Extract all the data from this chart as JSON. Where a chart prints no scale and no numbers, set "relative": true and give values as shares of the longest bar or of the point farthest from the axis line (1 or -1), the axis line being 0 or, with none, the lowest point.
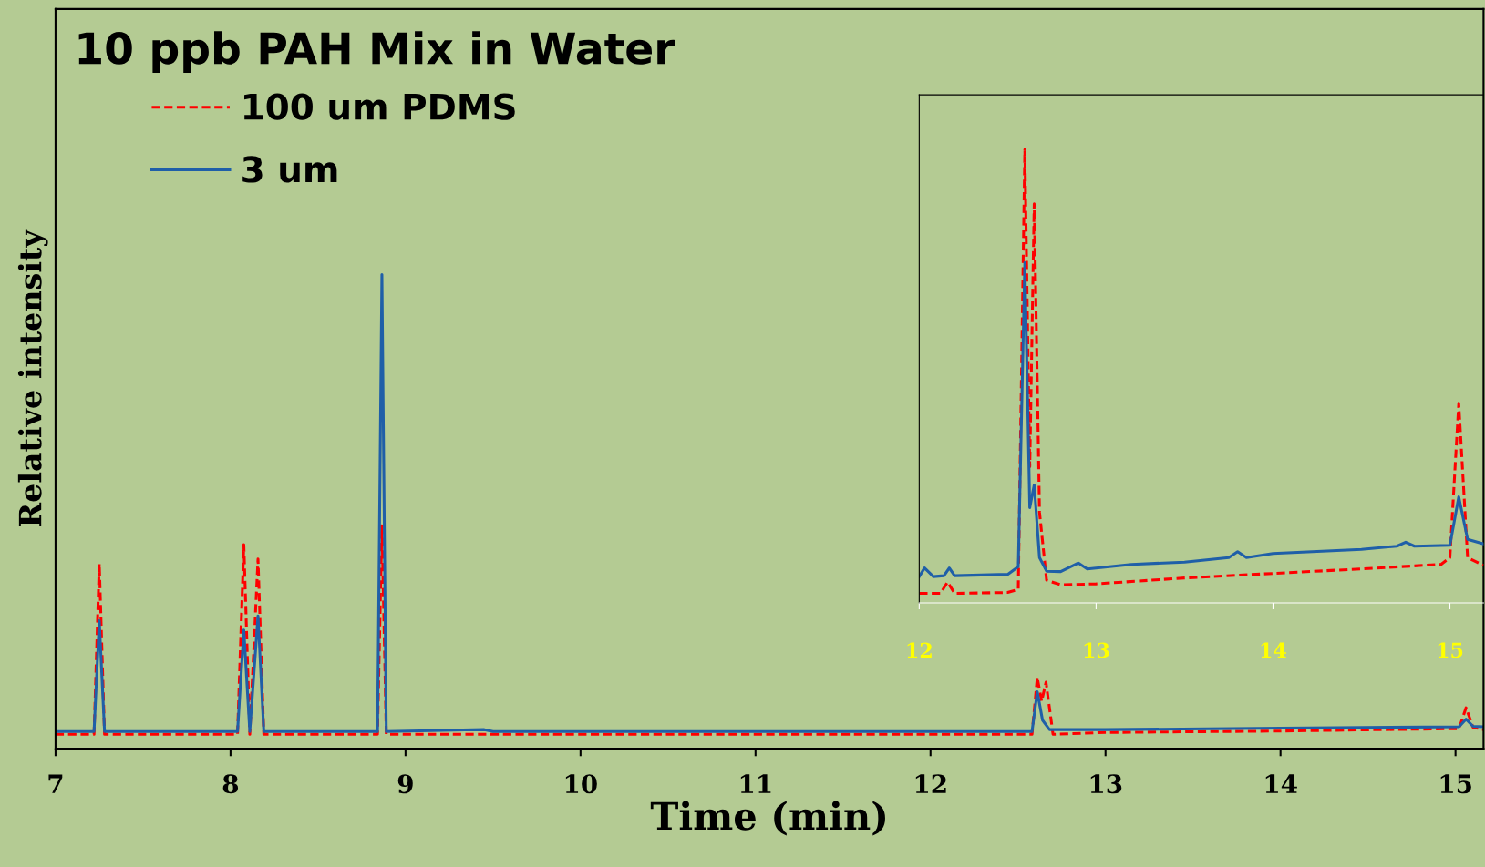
{
  "chart_data": [
    {
      "type": "line",
      "title": "10 ppb PAH Mix in Water",
      "xlabel": "Time (min)",
      "ylabel": "Relative intensity",
      "relative": true,
      "xlim": [
        7,
        15.16
      ],
      "xticks": [
        7,
        8,
        9,
        10,
        11,
        12,
        13,
        14,
        15
      ],
      "legend": "top left",
      "grid": false,
      "series": [
        {
          "name": "100 um PDMS",
          "color": "#ff0000",
          "line_style": "dashed",
          "x": [
            7,
            7.22,
            7.25,
            7.28,
            8.04,
            8.076,
            8.11,
            8.157,
            8.19,
            8.84,
            8.865,
            8.89,
            9.5,
            10,
            11,
            12,
            12.58,
            12.61,
            12.635,
            12.66,
            12.7,
            13,
            14,
            15.02,
            15.06,
            15.1,
            15.16
          ],
          "values": [
            0.03,
            0.03,
            0.39,
            0.03,
            0.03,
            0.43,
            0.03,
            0.4,
            0.03,
            0.03,
            0.47,
            0.03,
            0.03,
            0.03,
            0.03,
            0.03,
            0.03,
            0.15,
            0.1,
            0.14,
            0.03,
            0.034,
            0.037,
            0.042,
            0.086,
            0.045,
            0.04
          ]
        },
        {
          "name": "3 um",
          "color": "#1f5fa8",
          "line_style": "solid",
          "x": [
            7,
            7.22,
            7.25,
            7.28,
            8.04,
            8.076,
            8.11,
            8.157,
            8.19,
            8.84,
            8.865,
            8.89,
            9.45,
            9.5,
            10,
            11,
            12,
            12.58,
            12.61,
            12.64,
            12.68,
            13,
            14,
            15.02,
            15.06,
            15.1,
            15.16
          ],
          "values": [
            0.036,
            0.036,
            0.27,
            0.036,
            0.036,
            0.25,
            0.036,
            0.28,
            0.036,
            0.036,
            1.0,
            0.036,
            0.04,
            0.036,
            0.036,
            0.036,
            0.036,
            0.036,
            0.12,
            0.06,
            0.04,
            0.04,
            0.043,
            0.046,
            0.062,
            0.047,
            0.046
          ]
        }
      ]
    },
    {
      "type": "line",
      "relative": true,
      "xlim": [
        12,
        15.19
      ],
      "xticks": [
        12,
        13,
        14,
        15
      ],
      "grid": false,
      "series": [
        {
          "color": "#ff0000",
          "line_style": "dashed",
          "x": [
            12,
            12.12,
            12.16,
            12.2,
            12.5,
            12.56,
            12.597,
            12.625,
            12.65,
            12.68,
            12.72,
            12.8,
            13,
            13.5,
            14,
            14.5,
            14.95,
            15.0,
            15.05,
            15.1,
            15.19
          ],
          "values": [
            0.021,
            0.021,
            0.046,
            0.021,
            0.023,
            0.03,
            1.0,
            0.3,
            0.88,
            0.2,
            0.05,
            0.04,
            0.042,
            0.055,
            0.065,
            0.075,
            0.085,
            0.1,
            0.44,
            0.1,
            0.083
          ]
        },
        {
          "color": "#1f5fa8",
          "line_style": "solid",
          "x": [
            12,
            12.03,
            12.08,
            12.14,
            12.17,
            12.2,
            12.5,
            12.56,
            12.597,
            12.625,
            12.65,
            12.68,
            12.72,
            12.8,
            12.9,
            12.95,
            13.2,
            13.5,
            13.75,
            13.8,
            13.85,
            14,
            14.5,
            14.7,
            14.75,
            14.8,
            15.0,
            15.05,
            15.1,
            15.19
          ],
          "values": [
            0.058,
            0.077,
            0.058,
            0.06,
            0.077,
            0.06,
            0.063,
            0.08,
            0.75,
            0.21,
            0.26,
            0.1,
            0.07,
            0.069,
            0.088,
            0.075,
            0.085,
            0.09,
            0.1,
            0.113,
            0.1,
            0.109,
            0.118,
            0.125,
            0.134,
            0.125,
            0.127,
            0.234,
            0.14,
            0.13
          ]
        }
      ]
    }
  ]
}
